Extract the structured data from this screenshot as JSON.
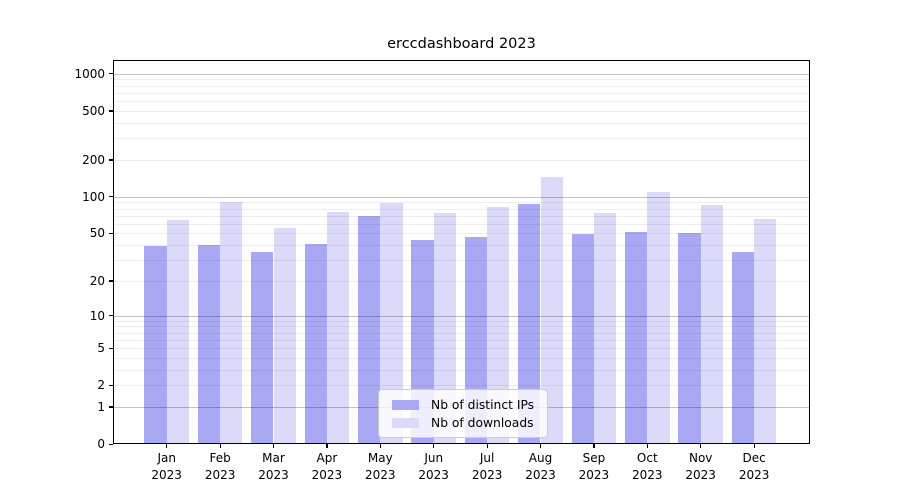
{
  "chart_data": {
    "type": "bar",
    "title": "erccdashboard 2023",
    "categories": [
      "Jan 2023",
      "Feb 2023",
      "Mar 2023",
      "Apr 2023",
      "May 2023",
      "Jun 2023",
      "Jul 2023",
      "Aug 2023",
      "Sep 2023",
      "Oct 2023",
      "Nov 2023",
      "Dec 2023"
    ],
    "x_tick_line1": [
      "Jan",
      "Feb",
      "Mar",
      "Apr",
      "May",
      "Jun",
      "Jul",
      "Aug",
      "Sep",
      "Oct",
      "Nov",
      "Dec"
    ],
    "x_tick_line2": "2023",
    "series": [
      {
        "name": "Nb of distinct IPs",
        "color": "#a9a9f3",
        "values": [
          39,
          40,
          35,
          41,
          70,
          44,
          47,
          87,
          49,
          51,
          50,
          35
        ]
      },
      {
        "name": "Nb of downloads",
        "color": "#dbdbf9",
        "values": [
          65,
          90,
          55,
          75,
          88,
          73,
          82,
          144,
          73,
          109,
          85,
          66
        ]
      }
    ],
    "xlabel": "",
    "ylabel": "",
    "y_scale": "log1p",
    "ylim": [
      0,
      1292
    ],
    "y_tick_values": [
      0,
      1,
      2,
      5,
      10,
      20,
      50,
      100,
      200,
      500,
      1000
    ],
    "gridlines": {
      "major": [
        1,
        10,
        100,
        1000
      ],
      "minor": [
        2,
        3,
        4,
        5,
        6,
        7,
        8,
        9,
        20,
        30,
        40,
        50,
        60,
        70,
        80,
        90,
        200,
        300,
        400,
        500,
        600,
        700,
        800,
        900
      ]
    },
    "grid": true,
    "legend_position": "inside-bottom-center"
  }
}
